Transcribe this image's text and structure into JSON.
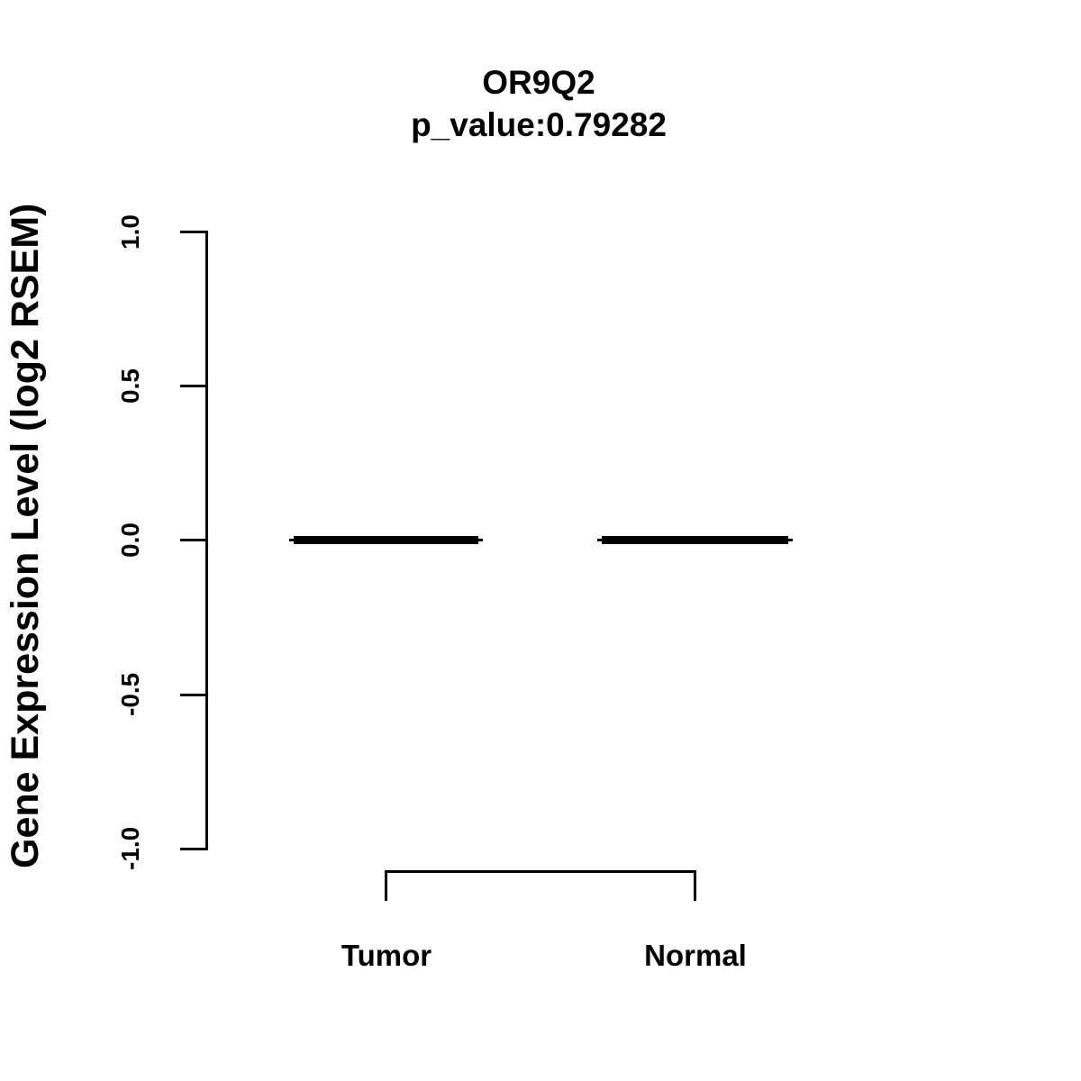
{
  "chart_data": {
    "type": "boxplot",
    "title": "OR9Q2",
    "subtitle": "p_value:0.79282",
    "gene": "OR9Q2",
    "p_value": "0.79282",
    "ylabel": "Gene Expression Level (log2 RSEM)",
    "xlabel": "",
    "categories": [
      "Tumor",
      "Normal"
    ],
    "series": [
      {
        "name": "Tumor",
        "median": 0.0,
        "q1": 0.0,
        "q3": 0.0,
        "whisker_low": 0.0,
        "whisker_high": 0.0
      },
      {
        "name": "Normal",
        "median": 0.0,
        "q1": 0.0,
        "q3": 0.0,
        "whisker_low": 0.0,
        "whisker_high": 0.0
      }
    ],
    "ylim": [
      -1.0,
      1.0
    ],
    "yticks": [
      1.0,
      0.5,
      0.0,
      -0.5,
      -1.0
    ],
    "ytick_labels": [
      "1.0",
      "0.5",
      "0.0",
      "-0.5",
      "-1.0"
    ],
    "legend": null,
    "grid": false,
    "colors": {
      "foreground": "#000000",
      "background": "#ffffff"
    }
  }
}
